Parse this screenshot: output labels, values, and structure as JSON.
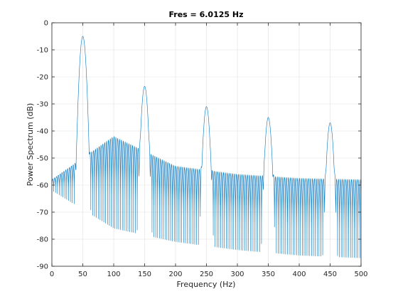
{
  "chart_data": {
    "type": "line",
    "title": "Fres = 6.0125 Hz",
    "xlabel": "Frequency (Hz)",
    "ylabel": "Power Spectrum (dB)",
    "xlim": [
      0,
      500
    ],
    "ylim": [
      -90,
      0
    ],
    "xticks": [
      0,
      50,
      100,
      150,
      200,
      250,
      300,
      350,
      400,
      450,
      500
    ],
    "yticks": [
      0,
      -10,
      -20,
      -30,
      -40,
      -50,
      -60,
      -70,
      -80,
      -90
    ],
    "xtick_labels": [
      "0",
      "50",
      "100",
      "150",
      "200",
      "250",
      "300",
      "350",
      "400",
      "450",
      "500"
    ],
    "ytick_labels": [
      "0",
      "-10",
      "-20",
      "-30",
      "-40",
      "-50",
      "-60",
      "-70",
      "-80",
      "-90"
    ],
    "grid": true,
    "line_color": "#0072BD",
    "peaks": [
      {
        "x": 50,
        "y": -5
      },
      {
        "x": 150,
        "y": -23.5
      },
      {
        "x": 250,
        "y": -31
      },
      {
        "x": 350,
        "y": -35
      },
      {
        "x": 450,
        "y": -37
      }
    ],
    "floor_envelope": [
      {
        "x": 0,
        "y": -58
      },
      {
        "x": 100,
        "y": -42
      },
      {
        "x": 200,
        "y": -53
      },
      {
        "x": 300,
        "y": -56
      },
      {
        "x": 400,
        "y": -57.5
      },
      {
        "x": 500,
        "y": -58
      }
    ],
    "null_envelope": [
      {
        "x": 0,
        "y": -62
      },
      {
        "x": 100,
        "y": -76
      },
      {
        "x": 200,
        "y": -81
      },
      {
        "x": 300,
        "y": -84
      },
      {
        "x": 400,
        "y": -86
      },
      {
        "x": 500,
        "y": -87
      }
    ]
  }
}
